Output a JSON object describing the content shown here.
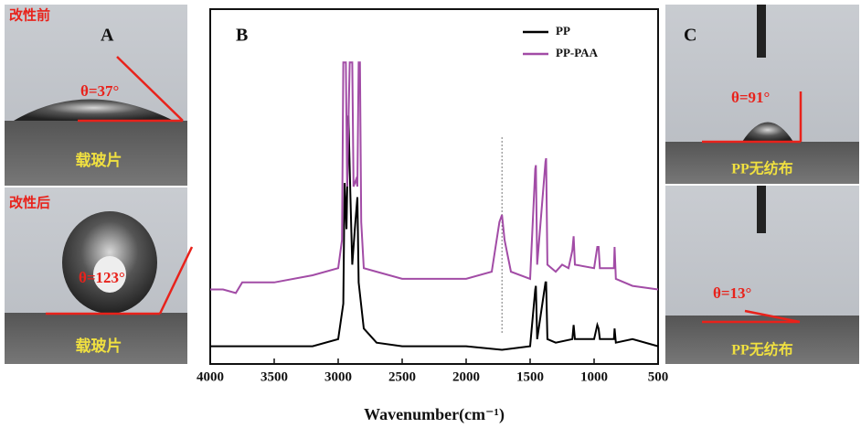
{
  "panels": {
    "a": {
      "label": "A",
      "top_caption": "改性前",
      "top_angle": "θ=37°",
      "top_substrate": "载玻片",
      "bottom_caption": "改性后",
      "bottom_angle": "θ=123°",
      "bottom_substrate": "载玻片"
    },
    "c": {
      "label": "C",
      "top_angle": "θ=91°",
      "top_substrate": "PP无纺布",
      "bottom_angle": "θ=13°",
      "bottom_substrate": "PP无纺布"
    }
  },
  "chart_data": {
    "type": "line",
    "panel_label": "B",
    "x_label": "Wavenumber(cm⁻¹)",
    "xlim": [
      4000,
      500
    ],
    "xticks": [
      4000,
      3500,
      3000,
      2500,
      2000,
      1500,
      1000,
      500
    ],
    "ylim": [
      0,
      100
    ],
    "reference_x": 1720,
    "legend": "upper right",
    "series": [
      {
        "name": "PP",
        "color": "#000000",
        "x": [
          4000,
          3800,
          3500,
          3200,
          3000,
          2960,
          2950,
          2935,
          2920,
          2905,
          2890,
          2870,
          2850,
          2840,
          2800,
          2700,
          2500,
          2000,
          1720,
          1500,
          1460,
          1455,
          1445,
          1380,
          1375,
          1365,
          1300,
          1170,
          1160,
          1150,
          1000,
          975,
          965,
          955,
          845,
          840,
          830,
          700,
          500
        ],
        "values": [
          5,
          5,
          5,
          5,
          7,
          17,
          51,
          38,
          70,
          48,
          28,
          38,
          47,
          23,
          10,
          6,
          5,
          5,
          4,
          5,
          21,
          22,
          7,
          23,
          23,
          7,
          6,
          7,
          11,
          7,
          7,
          11,
          10,
          7,
          7,
          10,
          6,
          7,
          5
        ]
      },
      {
        "name": "PP-PAA",
        "color": "#a24ca6",
        "x": [
          4000,
          3900,
          3800,
          3750,
          3500,
          3200,
          3000,
          2970,
          2960,
          2940,
          2930,
          2910,
          2890,
          2880,
          2860,
          2850,
          2840,
          2830,
          2820,
          2800,
          2700,
          2500,
          2000,
          1800,
          1740,
          1720,
          1700,
          1650,
          1500,
          1460,
          1455,
          1445,
          1380,
          1375,
          1365,
          1300,
          1250,
          1200,
          1170,
          1160,
          1150,
          1000,
          975,
          965,
          955,
          845,
          840,
          830,
          700,
          500
        ],
        "values": [
          21,
          21,
          20,
          23,
          23,
          25,
          27,
          35,
          85,
          85,
          50,
          85,
          85,
          50,
          52,
          50,
          85,
          85,
          40,
          27,
          26,
          24,
          24,
          26,
          40,
          42,
          35,
          26,
          24,
          55,
          56,
          28,
          57,
          58,
          28,
          26,
          28,
          27,
          32,
          36,
          28,
          27,
          33,
          33,
          27,
          27,
          33,
          24,
          22,
          21
        ]
      }
    ]
  }
}
